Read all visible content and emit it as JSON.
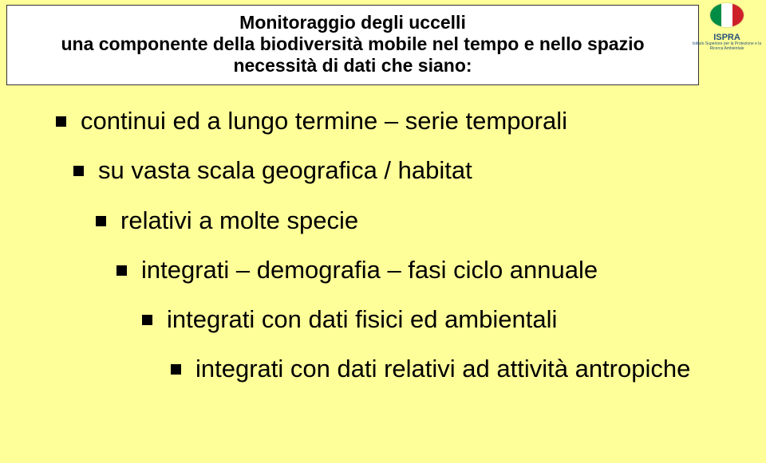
{
  "header": {
    "line1": "Monitoraggio degli uccelli",
    "line2": "una componente della biodiversità mobile nel tempo e nello spazio",
    "line3": "necessità di dati che siano:"
  },
  "logo": {
    "text": "ISPRA",
    "subtitle": "Istituto Superiore per la Protezione e la Ricerca Ambientale"
  },
  "bullets": [
    {
      "text": "continui ed a lungo termine – serie temporali",
      "indent": "b1"
    },
    {
      "text": "su vasta scala geografica / habitat",
      "indent": "b2"
    },
    {
      "text": "relativi a molte specie",
      "indent": "b3"
    },
    {
      "text": "integrati – demografia – fasi ciclo annuale",
      "indent": "b4"
    },
    {
      "text": "integrati con dati fisici ed ambientali",
      "indent": "b5"
    },
    {
      "text": "integrati con dati relativi ad attività antropiche",
      "indent": "b6"
    }
  ],
  "colors": {
    "page_bg": "#ffff99",
    "box_bg": "#ffffff",
    "text": "#000000",
    "logo_text": "#27527a"
  },
  "typography": {
    "header_fontsize_pt": 17,
    "bullet_fontsize_pt": 23,
    "font_family": "Arial"
  }
}
